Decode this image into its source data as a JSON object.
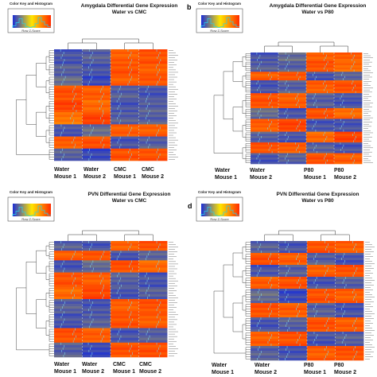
{
  "panels": [
    {
      "id": "a",
      "letter": "",
      "title_line1": "Amygdala Differential Gene Expression",
      "title_line2": "Water vs CMC",
      "key_title": "Color Key and Histogram",
      "key_xlabel": "Row Z-Score",
      "columns": [
        {
          "line1": "Water",
          "line2": "Mouse 1"
        },
        {
          "line1": "Water",
          "line2": "Mouse 2"
        },
        {
          "line1": "CMC",
          "line2": "Mouse 1"
        },
        {
          "line1": "CMC",
          "line2": "Mouse 2"
        }
      ],
      "n_rows": 46
    },
    {
      "id": "b",
      "letter": "b",
      "title_line1": "Amygdala Differential Gene Expression",
      "title_line2": "Water vs P80",
      "key_title": "Color Key and Histogram",
      "key_xlabel": "Row Z-Score",
      "columns": [
        {
          "line1": "Water",
          "line2": "Mouse 1"
        },
        {
          "line1": "Water",
          "line2": "Mouse 2"
        },
        {
          "line1": "P80",
          "line2": "Mouse 1"
        },
        {
          "line1": "P80",
          "line2": "Mouse 2"
        }
      ],
      "n_rows": 52
    },
    {
      "id": "c",
      "letter": "",
      "title_line1": "PVN Differential Gene Expression",
      "title_line2": "Water vs CMC",
      "key_title": "Color Key and Histogram",
      "key_xlabel": "Row Z-Score",
      "columns": [
        {
          "line1": "Water",
          "line2": "Mouse 1"
        },
        {
          "line1": "Water",
          "line2": "Mouse 2"
        },
        {
          "line1": "CMC",
          "line2": "Mouse 1"
        },
        {
          "line1": "CMC",
          "line2": "Mouse 2"
        }
      ],
      "n_rows": 48
    },
    {
      "id": "d",
      "letter": "d",
      "title_line1": "PVN Differential Gene Expression",
      "title_line2": "Water vs P80",
      "key_title": "Color Key and Histogram",
      "key_xlabel": "Row Z-Score",
      "columns": [
        {
          "line1": "Water",
          "line2": "Mouse 1"
        },
        {
          "line1": "Water",
          "line2": "Mouse 2"
        },
        {
          "line1": "P80",
          "line2": "Mouse 1"
        },
        {
          "line1": "P80",
          "line2": "Mouse 2"
        }
      ],
      "n_rows": 50
    }
  ],
  "chart_data": [
    {
      "type": "heatmap",
      "title": "Amygdala Differential Gene Expression Water vs CMC",
      "columns": [
        "Water Mouse 1",
        "Water Mouse 2",
        "CMC Mouse 1",
        "CMC Mouse 2"
      ],
      "colorbar": {
        "label": "Row Z-Score",
        "range": [
          -1.5,
          1.5
        ],
        "colors": [
          "#1b2fd6",
          "#ffe600",
          "#ff2a00"
        ]
      },
      "row_blocks": [
        {
          "rows": 6,
          "z": [
            -1.2,
            -1.1,
            1.1,
            1.2
          ]
        },
        {
          "rows": 5,
          "z": [
            -1.1,
            -1.2,
            1.2,
            1.1
          ]
        },
        {
          "rows": 4,
          "z": [
            -1.0,
            -1.3,
            1.1,
            1.2
          ]
        },
        {
          "rows": 6,
          "z": [
            1.2,
            1.1,
            -1.1,
            -1.2
          ]
        },
        {
          "rows": 5,
          "z": [
            1.3,
            1.0,
            -1.2,
            -1.1
          ]
        },
        {
          "rows": 5,
          "z": [
            0.9,
            1.3,
            -1.1,
            -1.1
          ]
        },
        {
          "rows": 5,
          "z": [
            -1.2,
            -1.0,
            1.1,
            1.1
          ]
        },
        {
          "rows": 5,
          "z": [
            1.1,
            1.2,
            -1.2,
            -1.1
          ]
        },
        {
          "rows": 5,
          "z": [
            -1.1,
            -1.3,
            1.2,
            1.2
          ]
        }
      ]
    },
    {
      "type": "heatmap",
      "title": "Amygdala Differential Gene Expression Water vs P80",
      "columns": [
        "Water Mouse 1",
        "Water Mouse 2",
        "P80 Mouse 1",
        "P80 Mouse 2"
      ],
      "colorbar": {
        "label": "Row Z-Score",
        "range": [
          -1.5,
          1.5
        ],
        "colors": [
          "#1b2fd6",
          "#ffe600",
          "#ff2a00"
        ]
      },
      "row_blocks": [
        {
          "rows": 4,
          "z": [
            -1.2,
            -1.0,
            1.1,
            1.1
          ]
        },
        {
          "rows": 5,
          "z": [
            -1.1,
            -1.1,
            1.2,
            1.0
          ]
        },
        {
          "rows": 4,
          "z": [
            1.1,
            1.2,
            -1.2,
            -1.1
          ]
        },
        {
          "rows": 6,
          "z": [
            -1.2,
            -1.1,
            1.1,
            1.2
          ]
        },
        {
          "rows": 7,
          "z": [
            1.2,
            1.1,
            -1.1,
            -1.2
          ]
        },
        {
          "rows": 5,
          "z": [
            -1.0,
            -1.2,
            1.2,
            1.0
          ]
        },
        {
          "rows": 6,
          "z": [
            1.1,
            1.3,
            -1.2,
            -1.2
          ]
        },
        {
          "rows": 5,
          "z": [
            -1.1,
            -1.2,
            1.0,
            1.3
          ]
        },
        {
          "rows": 5,
          "z": [
            1.2,
            1.1,
            -1.1,
            -1.2
          ]
        },
        {
          "rows": 5,
          "z": [
            -1.2,
            -1.1,
            1.2,
            1.1
          ]
        }
      ]
    },
    {
      "type": "heatmap",
      "title": "PVN Differential Gene Expression Water vs CMC",
      "columns": [
        "Water Mouse 1",
        "Water Mouse 2",
        "CMC Mouse 1",
        "CMC Mouse 2"
      ],
      "colorbar": {
        "label": "Row Z-Score",
        "range": [
          -1.5,
          1.5
        ],
        "colors": [
          "#1b2fd6",
          "#ffe600",
          "#ff2a00"
        ]
      },
      "row_blocks": [
        {
          "rows": 4,
          "z": [
            -1.1,
            -1.2,
            1.1,
            1.2
          ]
        },
        {
          "rows": 4,
          "z": [
            1.1,
            1.2,
            -1.2,
            -1.1
          ]
        },
        {
          "rows": 5,
          "z": [
            -1.2,
            -1.0,
            1.2,
            1.0
          ]
        },
        {
          "rows": 6,
          "z": [
            1.2,
            1.1,
            -1.1,
            -1.2
          ]
        },
        {
          "rows": 5,
          "z": [
            1.0,
            1.3,
            -1.2,
            -1.1
          ]
        },
        {
          "rows": 6,
          "z": [
            -1.1,
            -1.2,
            1.1,
            1.2
          ]
        },
        {
          "rows": 6,
          "z": [
            -1.2,
            -1.1,
            1.2,
            1.1
          ]
        },
        {
          "rows": 6,
          "z": [
            1.2,
            1.1,
            -1.2,
            -1.1
          ]
        },
        {
          "rows": 6,
          "z": [
            -1.1,
            -1.3,
            1.2,
            1.2
          ]
        }
      ]
    },
    {
      "type": "heatmap",
      "title": "PVN Differential Gene Expression Water vs P80",
      "columns": [
        "Water Mouse 1",
        "Water Mouse 2",
        "P80 Mouse 1",
        "P80 Mouse 2"
      ],
      "colorbar": {
        "label": "Row Z-Score",
        "range": [
          -1.5,
          1.5
        ],
        "colors": [
          "#1b2fd6",
          "#ffe600",
          "#ff2a00"
        ]
      },
      "row_blocks": [
        {
          "rows": 5,
          "z": [
            -1.1,
            -1.2,
            1.2,
            1.1
          ]
        },
        {
          "rows": 5,
          "z": [
            1.2,
            1.1,
            -1.1,
            -1.2
          ]
        },
        {
          "rows": 5,
          "z": [
            -1.2,
            -1.1,
            1.1,
            1.2
          ]
        },
        {
          "rows": 5,
          "z": [
            1.1,
            1.2,
            -1.2,
            -1.1
          ]
        },
        {
          "rows": 6,
          "z": [
            -1.0,
            -1.3,
            1.2,
            1.1
          ]
        },
        {
          "rows": 6,
          "z": [
            1.2,
            1.1,
            -1.1,
            -1.2
          ]
        },
        {
          "rows": 6,
          "z": [
            -1.2,
            -1.1,
            1.2,
            1.1
          ]
        },
        {
          "rows": 6,
          "z": [
            1.1,
            1.2,
            -1.2,
            -1.1
          ]
        },
        {
          "rows": 6,
          "z": [
            -1.1,
            -1.2,
            1.1,
            1.2
          ]
        }
      ]
    }
  ]
}
